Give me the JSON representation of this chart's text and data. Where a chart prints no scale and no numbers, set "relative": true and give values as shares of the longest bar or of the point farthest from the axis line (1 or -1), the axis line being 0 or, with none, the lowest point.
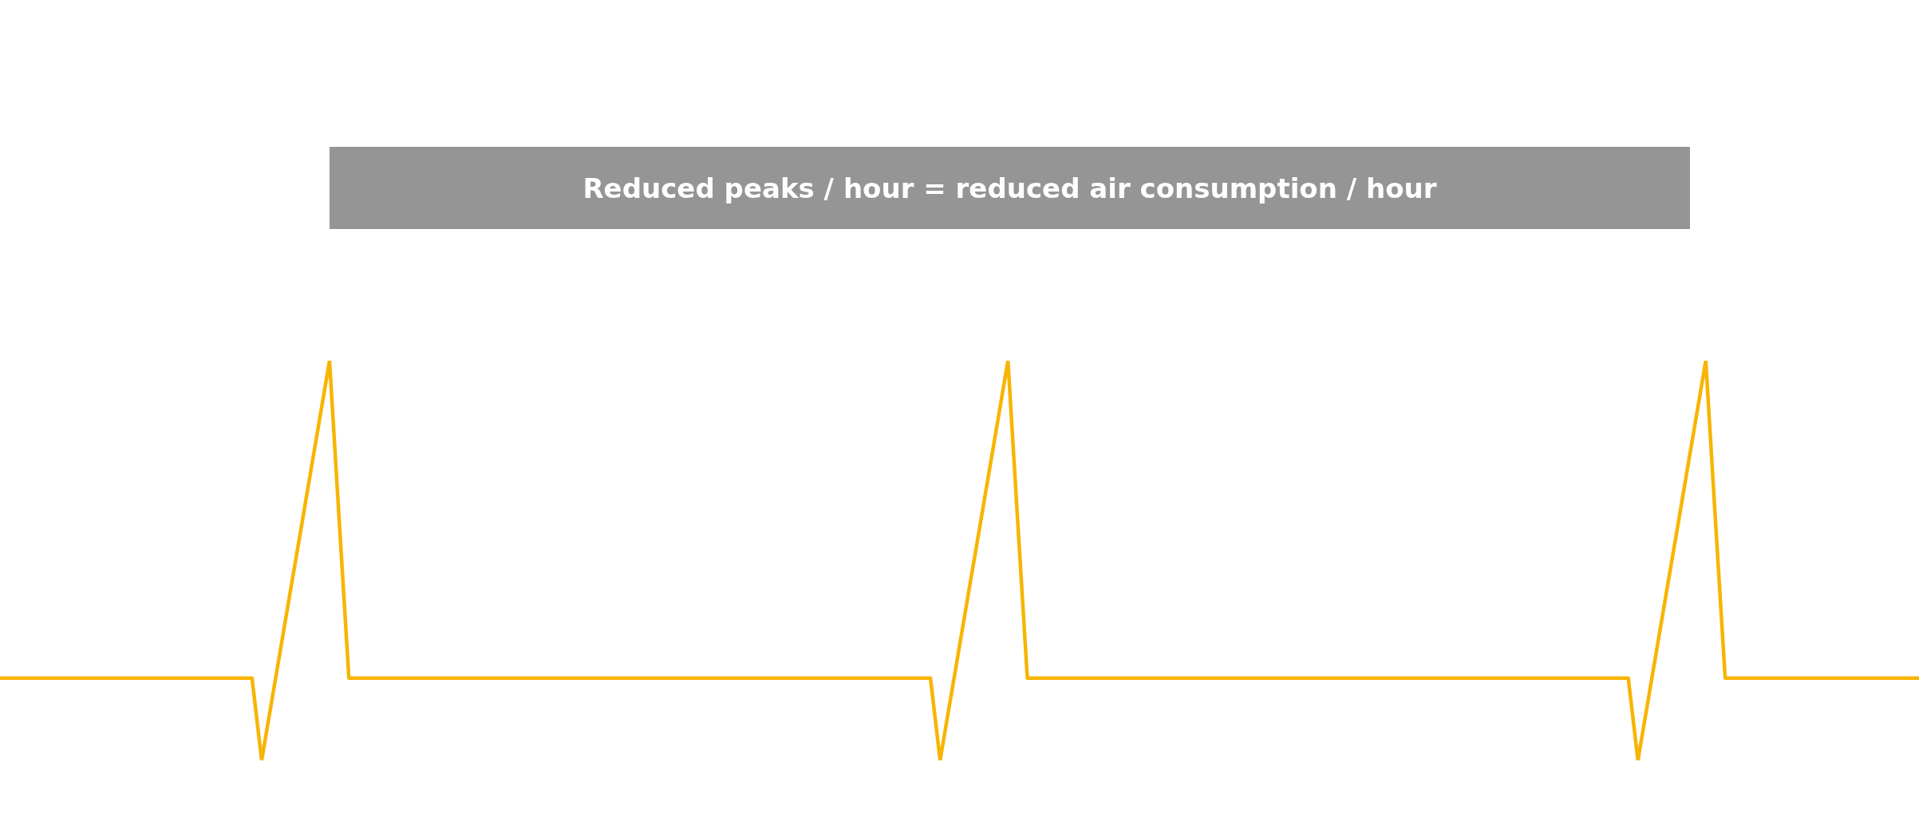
{
  "chart_data": {
    "type": "line",
    "title": "Reduced peaks / hour = reduced air consumption / hour",
    "relative": true,
    "marker": "none",
    "line_style": "solid",
    "categories": [
      null,
      null,
      null,
      null,
      null,
      null,
      null,
      null,
      null,
      null,
      null,
      null,
      null,
      null,
      null,
      null,
      null,
      null,
      null,
      null,
      null,
      null,
      null,
      null,
      null,
      null,
      null,
      null,
      null,
      null,
      null,
      null,
      null,
      null,
      null,
      null,
      null,
      null,
      null,
      null,
      null,
      null,
      null,
      null,
      null,
      null,
      null,
      null,
      null,
      null,
      null,
      null,
      null,
      null,
      null,
      null,
      null,
      null,
      null,
      null,
      null,
      null,
      null,
      null,
      null,
      null,
      null,
      null,
      null,
      null,
      null,
      null,
      null,
      null,
      null,
      null,
      null,
      null,
      null,
      null,
      null,
      null,
      null,
      null,
      null,
      null,
      null,
      null,
      null,
      null,
      null,
      null,
      null,
      null,
      null,
      null,
      null,
      null,
      null,
      null,
      null,
      null,
      null,
      null,
      null,
      null,
      null,
      null,
      null,
      null,
      null,
      null,
      null,
      null,
      null,
      null,
      null,
      null,
      null,
      null,
      null,
      null,
      null,
      null,
      null,
      null,
      null,
      null,
      null,
      null,
      null,
      null,
      null,
      null,
      null,
      null,
      null,
      null,
      null,
      null,
      null,
      null,
      null,
      null,
      null,
      null,
      null,
      null,
      null,
      null,
      null,
      null,
      null,
      null,
      null,
      null,
      null,
      null,
      null,
      null,
      null,
      null,
      null,
      null,
      null,
      null,
      null,
      null,
      null,
      null,
      null,
      null,
      null,
      null,
      null,
      null,
      null,
      null,
      null,
      null,
      null,
      null,
      null,
      null,
      null,
      null,
      null,
      null,
      null,
      null,
      null,
      null,
      null,
      null,
      null,
      null,
      null,
      null,
      null
    ],
    "series": [
      {
        "color": "#f7b500",
        "values": [
          0.206,
          0.206,
          0.206,
          0.206,
          0.206,
          0.206,
          0.206,
          0.206,
          0.206,
          0.206,
          0.206,
          0.206,
          0.206,
          0.206,
          0.206,
          0.206,
          0.206,
          0.206,
          0.206,
          0.206,
          0.206,
          0.206,
          0.206,
          0.206,
          0.206,
          0.206,
          0.206,
          0,
          0.143,
          0.286,
          0.429,
          0.571,
          0.714,
          0.857,
          1,
          0.6,
          0.206,
          0.206,
          0.206,
          0.206,
          0.206,
          0.206,
          0.206,
          0.206,
          0.206,
          0.206,
          0.206,
          0.206,
          0.206,
          0.206,
          0.206,
          0.206,
          0.206,
          0.206,
          0.206,
          0.206,
          0.206,
          0.206,
          0.206,
          0.206,
          0.206,
          0.206,
          0.206,
          0.206,
          0.206,
          0.206,
          0.206,
          0.206,
          0.206,
          0.206,
          0.206,
          0.206,
          0.206,
          0.206,
          0.206,
          0.206,
          0.206,
          0.206,
          0.206,
          0.206,
          0.206,
          0.206,
          0.206,
          0.206,
          0.206,
          0.206,
          0.206,
          0.206,
          0.206,
          0.206,
          0.206,
          0.206,
          0.206,
          0.206,
          0.206,
          0.206,
          0.206,
          0,
          0.143,
          0.286,
          0.429,
          0.571,
          0.714,
          0.857,
          1,
          0.6,
          0.206,
          0.206,
          0.206,
          0.206,
          0.206,
          0.206,
          0.206,
          0.206,
          0.206,
          0.206,
          0.206,
          0.206,
          0.206,
          0.206,
          0.206,
          0.206,
          0.206,
          0.206,
          0.206,
          0.206,
          0.206,
          0.206,
          0.206,
          0.206,
          0.206,
          0.206,
          0.206,
          0.206,
          0.206,
          0.206,
          0.206,
          0.206,
          0.206,
          0.206,
          0.206,
          0.206,
          0.206,
          0.206,
          0.206,
          0.206,
          0.206,
          0.206,
          0.206,
          0.206,
          0.206,
          0.206,
          0.206,
          0.206,
          0.206,
          0.206,
          0.206,
          0.206,
          0.206,
          0.206,
          0.206,
          0.206,
          0.206,
          0.206,
          0.206,
          0.206,
          0.206,
          0.206,
          0.206,
          0,
          0.143,
          0.286,
          0.429,
          0.571,
          0.714,
          0.857,
          1,
          0.6,
          0.206,
          0.206,
          0.206,
          0.206,
          0.206,
          0.206,
          0.206,
          0.206,
          0.206,
          0.206,
          0.206,
          0.206,
          0.206,
          0.206,
          0.206,
          0.206,
          0.206,
          0.206,
          0.206,
          0.206,
          0.206
        ]
      }
    ]
  }
}
